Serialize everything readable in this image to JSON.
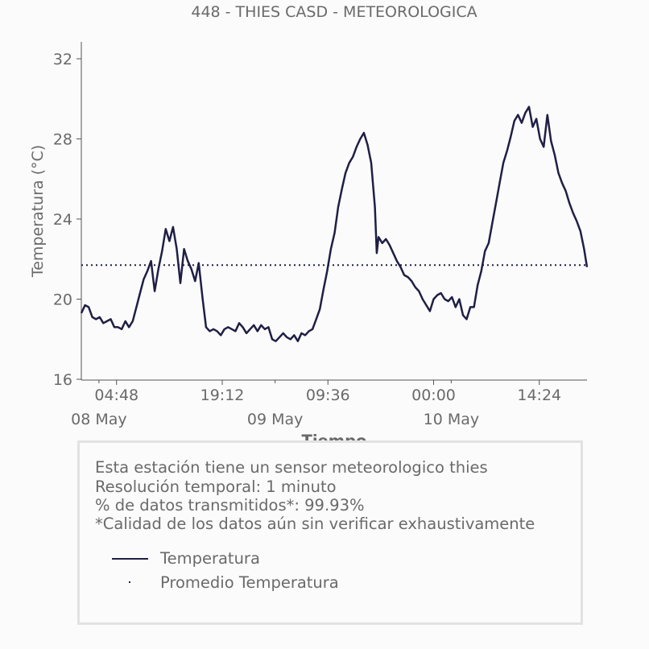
{
  "chart_data": {
    "type": "line",
    "title": "448 - THIES CASD - METEOROLOGICA",
    "xlabel": "Tiempo",
    "ylabel": "Temperatura (°C)",
    "ylim": [
      16,
      32
    ],
    "yticks": [
      16,
      20,
      24,
      28,
      32
    ],
    "xlim": [
      "2024-05-08T00:00",
      "2024-05-10T20:54"
    ],
    "xticks": [
      {
        "x": "2024-05-08T04:48",
        "label": "04:48"
      },
      {
        "x": "2024-05-08T19:12",
        "label": "19:12"
      },
      {
        "x": "2024-05-09T09:36",
        "label": "09:36"
      },
      {
        "x": "2024-05-10T00:00",
        "label": "00:00"
      },
      {
        "x": "2024-05-10T14:24",
        "label": "14:24"
      }
    ],
    "day_labels": [
      {
        "x": "2024-05-08T02:24",
        "label": "08 May"
      },
      {
        "x": "2024-05-09T02:24",
        "label": "09 May"
      },
      {
        "x": "2024-05-10T02:24",
        "label": "10 May"
      }
    ],
    "series": [
      {
        "name": "Temperatura",
        "color": "#1f1f45",
        "style": "solid",
        "points": [
          [
            "2024-05-08T00:00",
            19.3
          ],
          [
            "2024-05-08T00:30",
            19.7
          ],
          [
            "2024-05-08T01:00",
            19.6
          ],
          [
            "2024-05-08T01:30",
            19.1
          ],
          [
            "2024-05-08T02:00",
            19.0
          ],
          [
            "2024-05-08T02:30",
            19.1
          ],
          [
            "2024-05-08T03:00",
            18.8
          ],
          [
            "2024-05-08T03:30",
            18.9
          ],
          [
            "2024-05-08T04:00",
            19.0
          ],
          [
            "2024-05-08T04:30",
            18.6
          ],
          [
            "2024-05-08T05:00",
            18.6
          ],
          [
            "2024-05-08T05:30",
            18.5
          ],
          [
            "2024-05-08T06:00",
            18.9
          ],
          [
            "2024-05-08T06:30",
            18.6
          ],
          [
            "2024-05-08T07:00",
            18.9
          ],
          [
            "2024-05-08T07:30",
            19.6
          ],
          [
            "2024-05-08T08:00",
            20.3
          ],
          [
            "2024-05-08T08:30",
            21.0
          ],
          [
            "2024-05-08T09:00",
            21.4
          ],
          [
            "2024-05-08T09:30",
            21.9
          ],
          [
            "2024-05-08T10:00",
            20.4
          ],
          [
            "2024-05-08T10:30",
            21.5
          ],
          [
            "2024-05-08T11:00",
            22.4
          ],
          [
            "2024-05-08T11:30",
            23.5
          ],
          [
            "2024-05-08T12:00",
            22.9
          ],
          [
            "2024-05-08T12:30",
            23.6
          ],
          [
            "2024-05-08T13:00",
            22.5
          ],
          [
            "2024-05-08T13:30",
            20.8
          ],
          [
            "2024-05-08T14:00",
            22.5
          ],
          [
            "2024-05-08T14:30",
            21.9
          ],
          [
            "2024-05-08T15:00",
            21.5
          ],
          [
            "2024-05-08T15:30",
            20.9
          ],
          [
            "2024-05-08T16:00",
            21.8
          ],
          [
            "2024-05-08T16:30",
            20.1
          ],
          [
            "2024-05-08T17:00",
            18.6
          ],
          [
            "2024-05-08T17:30",
            18.4
          ],
          [
            "2024-05-08T18:00",
            18.5
          ],
          [
            "2024-05-08T18:30",
            18.4
          ],
          [
            "2024-05-08T19:00",
            18.2
          ],
          [
            "2024-05-08T19:30",
            18.5
          ],
          [
            "2024-05-08T20:00",
            18.6
          ],
          [
            "2024-05-08T20:30",
            18.5
          ],
          [
            "2024-05-08T21:00",
            18.4
          ],
          [
            "2024-05-08T21:30",
            18.8
          ],
          [
            "2024-05-08T22:00",
            18.6
          ],
          [
            "2024-05-08T22:30",
            18.3
          ],
          [
            "2024-05-08T23:00",
            18.5
          ],
          [
            "2024-05-08T23:30",
            18.7
          ],
          [
            "2024-05-09T00:00",
            18.4
          ],
          [
            "2024-05-09T00:30",
            18.7
          ],
          [
            "2024-05-09T01:00",
            18.5
          ],
          [
            "2024-05-09T01:30",
            18.6
          ],
          [
            "2024-05-09T02:00",
            18.0
          ],
          [
            "2024-05-09T02:30",
            17.9
          ],
          [
            "2024-05-09T03:00",
            18.1
          ],
          [
            "2024-05-09T03:30",
            18.3
          ],
          [
            "2024-05-09T04:00",
            18.1
          ],
          [
            "2024-05-09T04:30",
            18.0
          ],
          [
            "2024-05-09T05:00",
            18.2
          ],
          [
            "2024-05-09T05:30",
            17.9
          ],
          [
            "2024-05-09T06:00",
            18.3
          ],
          [
            "2024-05-09T06:30",
            18.2
          ],
          [
            "2024-05-09T07:00",
            18.4
          ],
          [
            "2024-05-09T07:30",
            18.5
          ],
          [
            "2024-05-09T08:00",
            19.0
          ],
          [
            "2024-05-09T08:30",
            19.5
          ],
          [
            "2024-05-09T09:00",
            20.5
          ],
          [
            "2024-05-09T09:30",
            21.4
          ],
          [
            "2024-05-09T10:00",
            22.5
          ],
          [
            "2024-05-09T10:30",
            23.3
          ],
          [
            "2024-05-09T11:00",
            24.6
          ],
          [
            "2024-05-09T11:30",
            25.5
          ],
          [
            "2024-05-09T12:00",
            26.3
          ],
          [
            "2024-05-09T12:30",
            26.8
          ],
          [
            "2024-05-09T13:00",
            27.1
          ],
          [
            "2024-05-09T13:30",
            27.6
          ],
          [
            "2024-05-09T14:00",
            28.0
          ],
          [
            "2024-05-09T14:30",
            28.3
          ],
          [
            "2024-05-09T15:00",
            27.7
          ],
          [
            "2024-05-09T15:30",
            26.8
          ],
          [
            "2024-05-09T16:00",
            24.6
          ],
          [
            "2024-05-09T16:15",
            22.3
          ],
          [
            "2024-05-09T16:30",
            23.1
          ],
          [
            "2024-05-09T17:00",
            22.8
          ],
          [
            "2024-05-09T17:30",
            23.0
          ],
          [
            "2024-05-09T18:00",
            22.7
          ],
          [
            "2024-05-09T18:30",
            22.3
          ],
          [
            "2024-05-09T19:00",
            21.9
          ],
          [
            "2024-05-09T19:30",
            21.6
          ],
          [
            "2024-05-09T20:00",
            21.2
          ],
          [
            "2024-05-09T20:30",
            21.1
          ],
          [
            "2024-05-09T21:00",
            20.9
          ],
          [
            "2024-05-09T21:30",
            20.6
          ],
          [
            "2024-05-09T22:00",
            20.4
          ],
          [
            "2024-05-09T22:30",
            20.0
          ],
          [
            "2024-05-09T23:00",
            19.7
          ],
          [
            "2024-05-09T23:30",
            19.4
          ],
          [
            "2024-05-10T00:00",
            20.0
          ],
          [
            "2024-05-10T00:30",
            20.2
          ],
          [
            "2024-05-10T01:00",
            20.3
          ],
          [
            "2024-05-10T01:30",
            20.0
          ],
          [
            "2024-05-10T02:00",
            19.9
          ],
          [
            "2024-05-10T02:30",
            20.1
          ],
          [
            "2024-05-10T03:00",
            19.6
          ],
          [
            "2024-05-10T03:30",
            20.0
          ],
          [
            "2024-05-10T04:00",
            19.2
          ],
          [
            "2024-05-10T04:30",
            19.0
          ],
          [
            "2024-05-10T05:00",
            19.6
          ],
          [
            "2024-05-10T05:30",
            19.6
          ],
          [
            "2024-05-10T06:00",
            20.7
          ],
          [
            "2024-05-10T06:30",
            21.4
          ],
          [
            "2024-05-10T07:00",
            22.4
          ],
          [
            "2024-05-10T07:30",
            22.8
          ],
          [
            "2024-05-10T08:00",
            23.8
          ],
          [
            "2024-05-10T08:30",
            24.8
          ],
          [
            "2024-05-10T09:00",
            25.8
          ],
          [
            "2024-05-10T09:30",
            26.8
          ],
          [
            "2024-05-10T10:00",
            27.4
          ],
          [
            "2024-05-10T10:30",
            28.1
          ],
          [
            "2024-05-10T11:00",
            28.9
          ],
          [
            "2024-05-10T11:30",
            29.2
          ],
          [
            "2024-05-10T12:00",
            28.8
          ],
          [
            "2024-05-10T12:30",
            29.3
          ],
          [
            "2024-05-10T13:00",
            29.6
          ],
          [
            "2024-05-10T13:30",
            28.6
          ],
          [
            "2024-05-10T14:00",
            29.0
          ],
          [
            "2024-05-10T14:30",
            28.0
          ],
          [
            "2024-05-10T15:00",
            27.6
          ],
          [
            "2024-05-10T15:30",
            29.2
          ],
          [
            "2024-05-10T16:00",
            27.9
          ],
          [
            "2024-05-10T16:30",
            27.2
          ],
          [
            "2024-05-10T17:00",
            26.3
          ],
          [
            "2024-05-10T17:30",
            25.8
          ],
          [
            "2024-05-10T18:00",
            25.4
          ],
          [
            "2024-05-10T18:30",
            24.8
          ],
          [
            "2024-05-10T19:00",
            24.3
          ],
          [
            "2024-05-10T19:30",
            23.9
          ],
          [
            "2024-05-10T20:00",
            23.4
          ],
          [
            "2024-05-10T20:30",
            22.5
          ],
          [
            "2024-05-10T20:54",
            21.6
          ]
        ]
      },
      {
        "name": "Promedio Temperatura",
        "color": "#1f1f45",
        "style": "dotted",
        "value": 21.7
      }
    ],
    "grid": false,
    "legend_position": "below"
  },
  "info": {
    "lines": [
      "Esta estación tiene un sensor meteorologico thies",
      "Resolución temporal: 1 minuto",
      "% de datos transmitidos*: 99.93%",
      "*Calidad de los datos aún sin verificar exhaustivamente"
    ],
    "legend": [
      {
        "label": "Temperatura",
        "style": "line"
      },
      {
        "label": "Promedio Temperatura",
        "style": "dot"
      }
    ]
  }
}
